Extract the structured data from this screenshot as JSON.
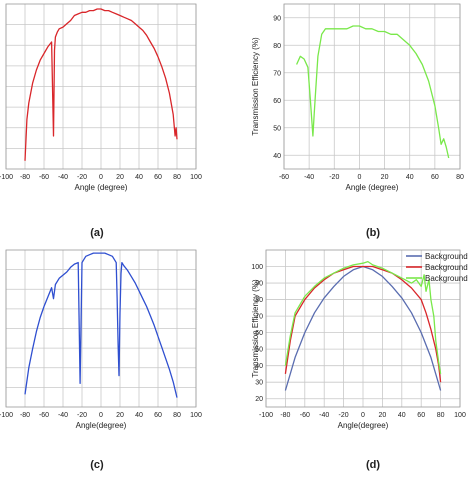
{
  "chart_data": [
    {
      "panel": "(a)",
      "type": "line",
      "xlabel": "Angle (degree)",
      "ylabel": "",
      "xlim": [
        -100,
        100
      ],
      "ylim": [
        0,
        100
      ],
      "xticks": [
        "-100",
        "-80",
        "-60",
        "-40",
        "-20",
        "0",
        "20",
        "40",
        "60",
        "80",
        "100"
      ],
      "grid": true,
      "series": [
        {
          "color": "#d9262a",
          "x": [
            -80,
            -78,
            -76,
            -72,
            -68,
            -64,
            -60,
            -56,
            -52,
            -50,
            -49,
            -48,
            -46,
            -44,
            -40,
            -36,
            -32,
            -28,
            -24,
            -20,
            -16,
            -12,
            -8,
            -4,
            0,
            4,
            8,
            12,
            16,
            20,
            24,
            28,
            32,
            36,
            40,
            44,
            48,
            52,
            56,
            60,
            64,
            68,
            72,
            76,
            78,
            79,
            80
          ],
          "y": [
            5,
            30,
            40,
            52,
            60,
            66,
            70,
            74,
            77,
            20,
            72,
            80,
            83,
            85,
            86,
            88,
            90,
            93,
            94,
            95,
            95,
            96,
            96,
            97,
            97,
            96,
            96,
            95,
            94,
            93,
            92,
            91,
            90,
            88,
            86,
            84,
            81,
            77,
            73,
            68,
            62,
            55,
            46,
            33,
            20,
            25,
            18
          ]
        }
      ]
    },
    {
      "panel": "(b)",
      "type": "line",
      "xlabel": "Angle (degree)",
      "ylabel": "Transmission Efficiency (%)",
      "xlim": [
        -60,
        80
      ],
      "ylim": [
        35,
        95
      ],
      "xticks": [
        "-60",
        "-40",
        "-20",
        "0",
        "20",
        "40",
        "60",
        "80"
      ],
      "yticks": [
        "40",
        "50",
        "60",
        "70",
        "80",
        "90"
      ],
      "grid": true,
      "series": [
        {
          "color": "#79e84a",
          "x": [
            -50,
            -47,
            -44,
            -41,
            -39,
            -37,
            -36,
            -35,
            -33,
            -30,
            -27,
            -24,
            -20,
            -15,
            -10,
            -5,
            0,
            5,
            10,
            15,
            20,
            25,
            30,
            35,
            40,
            45,
            50,
            55,
            60,
            63,
            65,
            67,
            69,
            71
          ],
          "y": [
            73,
            76,
            75,
            72,
            60,
            47,
            55,
            62,
            76,
            84,
            86,
            86,
            86,
            86,
            86,
            87,
            87,
            86,
            86,
            85,
            85,
            84,
            84,
            82,
            80,
            77,
            73,
            67,
            58,
            50,
            44,
            46,
            43,
            39
          ]
        }
      ]
    },
    {
      "panel": "(c)",
      "type": "line",
      "xlabel": "Angle(degree)",
      "ylabel": "",
      "xlim": [
        -100,
        100
      ],
      "ylim": [
        0,
        100
      ],
      "xticks": [
        "-100",
        "-80",
        "-60",
        "-40",
        "-20",
        "0",
        "20",
        "40",
        "60",
        "80",
        "100"
      ],
      "grid": true,
      "series": [
        {
          "color": "#2f4fd0",
          "x": [
            -80,
            -76,
            -72,
            -68,
            -64,
            -60,
            -56,
            -52,
            -50,
            -48,
            -44,
            -40,
            -36,
            -32,
            -28,
            -24,
            -22,
            -20,
            -18,
            -16,
            -12,
            -8,
            -4,
            0,
            4,
            8,
            12,
            16,
            17,
            18,
            19,
            20,
            21,
            22,
            24,
            28,
            32,
            36,
            40,
            44,
            48,
            52,
            56,
            60,
            64,
            68,
            72,
            76,
            80
          ],
          "y": [
            8,
            25,
            37,
            48,
            57,
            64,
            70,
            76,
            69,
            78,
            82,
            84,
            86,
            89,
            91,
            92,
            15,
            92,
            94,
            96,
            97,
            98,
            98,
            98,
            98,
            97,
            96,
            92,
            70,
            40,
            20,
            60,
            85,
            92,
            90,
            87,
            83,
            79,
            74,
            69,
            64,
            58,
            52,
            45,
            38,
            31,
            24,
            16,
            6
          ]
        }
      ]
    },
    {
      "panel": "(d)",
      "type": "line",
      "xlabel": "Angle(degree)",
      "ylabel": "Transmission Efficiency (%)",
      "xlim": [
        -100,
        100
      ],
      "ylim": [
        15,
        110
      ],
      "xticks": [
        "-100",
        "-80",
        "-60",
        "-40",
        "-20",
        "0",
        "20",
        "40",
        "60",
        "80",
        "100"
      ],
      "yticks": [
        "20",
        "30",
        "40",
        "50",
        "60",
        "70",
        "80",
        "90",
        "100"
      ],
      "grid": true,
      "legend": "top-right",
      "series": [
        {
          "name": "Background",
          "color": "#5a6db0",
          "x": [
            -80,
            -70,
            -60,
            -50,
            -40,
            -30,
            -20,
            -10,
            0,
            10,
            20,
            30,
            40,
            50,
            60,
            70,
            80
          ],
          "y": [
            25,
            45,
            60,
            72,
            81,
            88,
            94,
            98,
            100,
            98,
            94,
            88,
            81,
            72,
            60,
            45,
            25
          ]
        },
        {
          "name": "Background",
          "color": "#d9262a",
          "x": [
            -80,
            -75,
            -70,
            -60,
            -50,
            -40,
            -30,
            -20,
            -10,
            0,
            10,
            20,
            30,
            40,
            50,
            60,
            65,
            70,
            75,
            78,
            80
          ],
          "y": [
            35,
            55,
            70,
            80,
            87,
            92,
            96,
            98,
            100,
            100,
            100,
            98,
            96,
            92,
            87,
            80,
            72,
            62,
            50,
            40,
            30
          ]
        },
        {
          "name": "Background",
          "color": "#79e84a",
          "x": [
            -80,
            -75,
            -70,
            -60,
            -50,
            -40,
            -30,
            -20,
            -10,
            0,
            5,
            10,
            20,
            30,
            40,
            50,
            55,
            60,
            63,
            65,
            68,
            70,
            73,
            75,
            78,
            80
          ],
          "y": [
            40,
            58,
            72,
            82,
            88,
            93,
            96,
            99,
            101,
            102,
            103,
            101,
            99,
            96,
            93,
            90,
            92,
            88,
            95,
            85,
            92,
            80,
            70,
            55,
            42,
            35
          ]
        }
      ]
    }
  ],
  "panel_labels": [
    "(a)",
    "(b)",
    "(c)",
    "(d)"
  ]
}
